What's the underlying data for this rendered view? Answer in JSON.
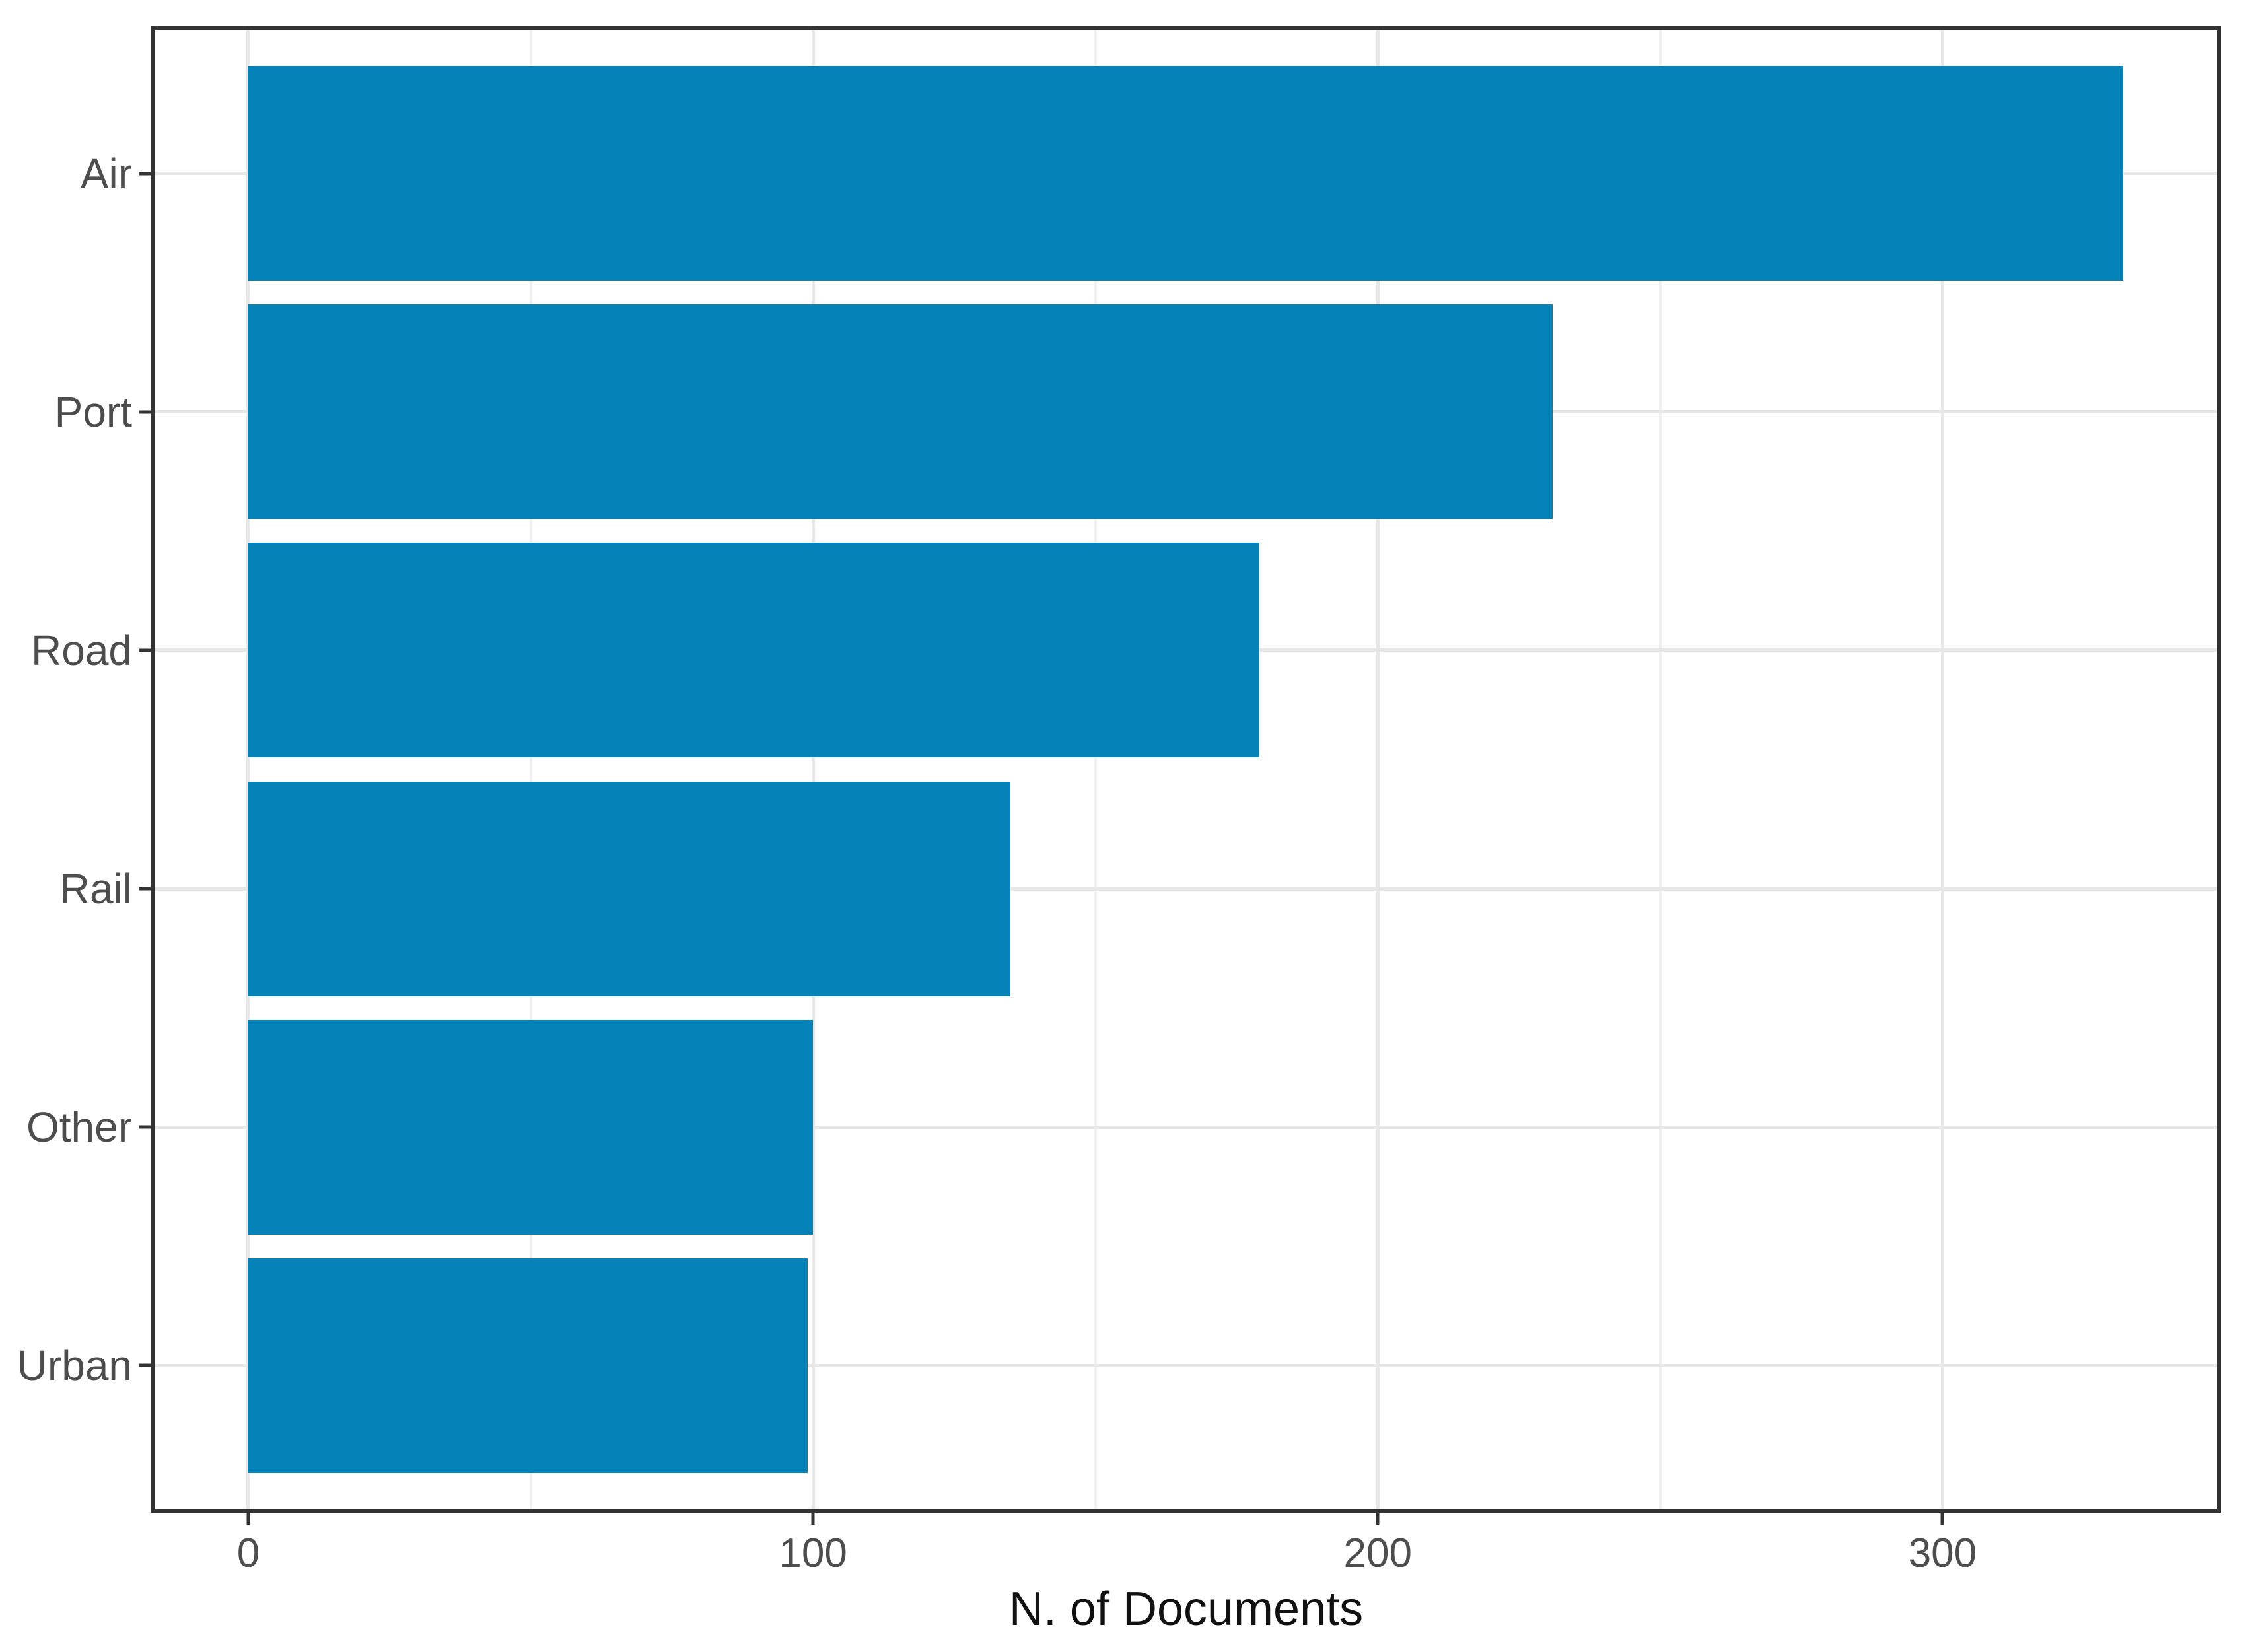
{
  "figure": {
    "background": "#ffffff"
  },
  "chart_data": {
    "type": "bar",
    "orientation": "horizontal",
    "title": "",
    "xlabel": "N. of Documents",
    "ylabel": "",
    "categories": [
      "Air",
      "Port",
      "Road",
      "Rail",
      "Other",
      "Urban"
    ],
    "values": [
      332,
      231,
      179,
      135,
      100,
      99
    ],
    "x_ticks": [
      0,
      100,
      200,
      300
    ],
    "x_minor_gridlines": [
      50,
      150,
      250
    ],
    "xlim": [
      -16.6,
      348.6
    ],
    "grid": "major-and-minor-vertical, major-horizontal",
    "legend_position": "none",
    "bar_color": "#0583b8",
    "panel_border_color": "#333333",
    "major_gridline_color": "#e7e7e7",
    "minor_gridline_color": "#f0f0f0",
    "tick_mark_color": "#333333",
    "tick_label_color": "#4d4d4d",
    "axis_title_color": "#111111"
  }
}
